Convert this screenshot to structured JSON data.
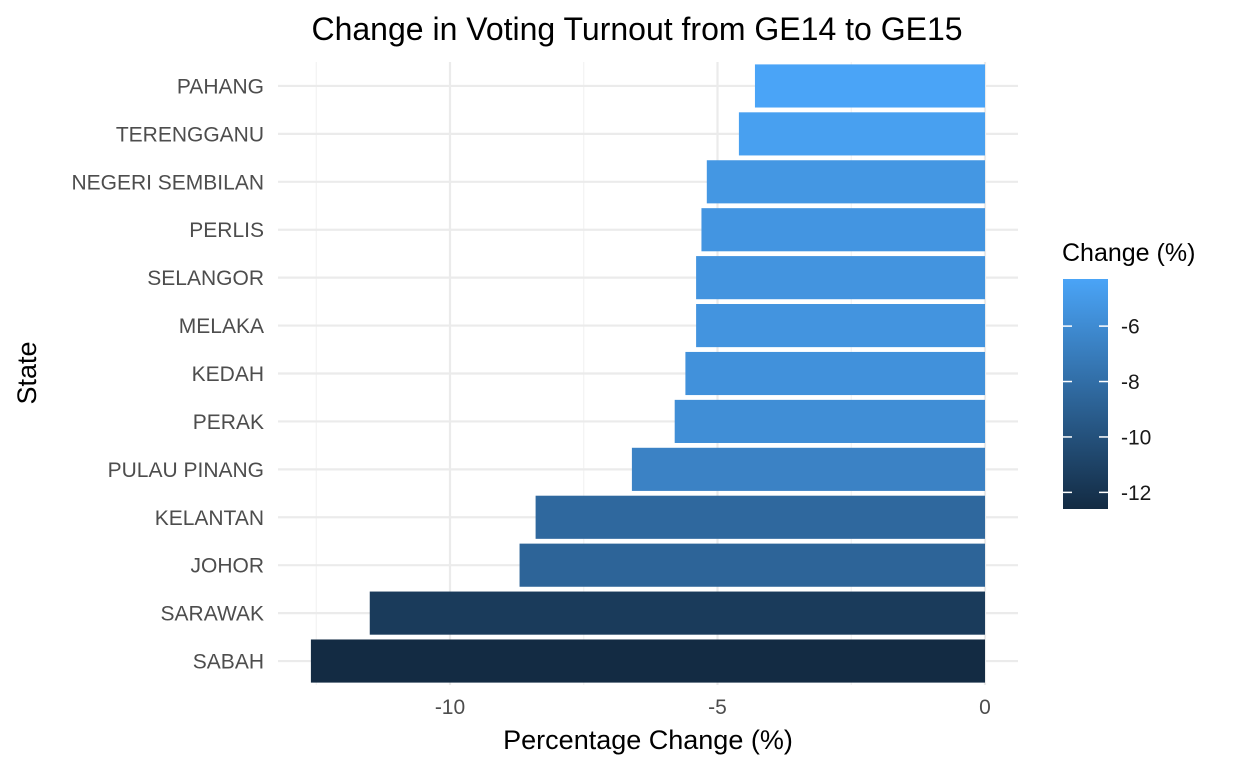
{
  "chart_data": {
    "type": "bar",
    "orientation": "horizontal",
    "title": "Change in Voting Turnout from GE14 to GE15",
    "xlabel": "Percentage Change (%)",
    "ylabel": "State",
    "categories": [
      "PAHANG",
      "TERENGGANU",
      "NEGERI SEMBILAN",
      "PERLIS",
      "SELANGOR",
      "MELAKA",
      "KEDAH",
      "PERAK",
      "PULAU PINANG",
      "KELANTAN",
      "JOHOR",
      "SARAWAK",
      "SABAH"
    ],
    "values": [
      -4.3,
      -4.6,
      -5.2,
      -5.3,
      -5.4,
      -5.4,
      -5.6,
      -5.8,
      -6.6,
      -8.4,
      -8.7,
      -11.5,
      -12.6
    ],
    "xlim": [
      -12.6,
      0
    ],
    "xticks": [
      -10,
      -5,
      0
    ],
    "xtick_labels": [
      "-10",
      "-5",
      "0"
    ],
    "grid": true,
    "legend": {
      "title": "Change (%)",
      "position": "right",
      "type": "colorbar",
      "range": [
        -12.6,
        -4.3
      ],
      "ticks": [
        -6,
        -8,
        -10,
        -12
      ],
      "tick_labels": [
        "-6",
        "-8",
        "-10",
        "-12"
      ],
      "low_color": "#132b43",
      "high_color": "#4aa4f7"
    }
  }
}
